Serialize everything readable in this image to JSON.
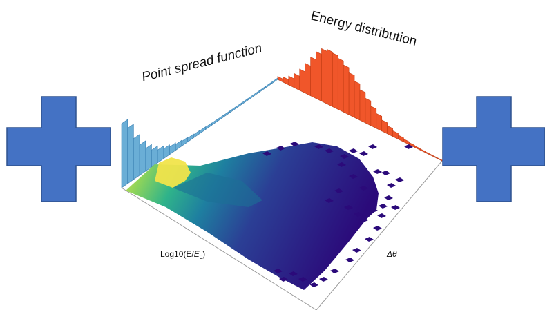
{
  "labels": {
    "psf_title": "Point spread function",
    "energy_title": "Energy distribution",
    "x_axis": "Log10(E/",
    "x_axis_sub": "E",
    "x_axis_sub0": "0",
    "x_axis_close": ")",
    "y_axis": "Δθ"
  },
  "colors": {
    "cross": "#4472c4",
    "cross_border": "#2f528f",
    "psf_bars": "#6aaed6",
    "energy_bars": "#f0562a",
    "heatmap_low": "#2b0a7a",
    "heatmap_high": "#f4e64a"
  },
  "icons": {
    "left": "plus-cross-icon",
    "right": "plus-cross-icon"
  }
}
